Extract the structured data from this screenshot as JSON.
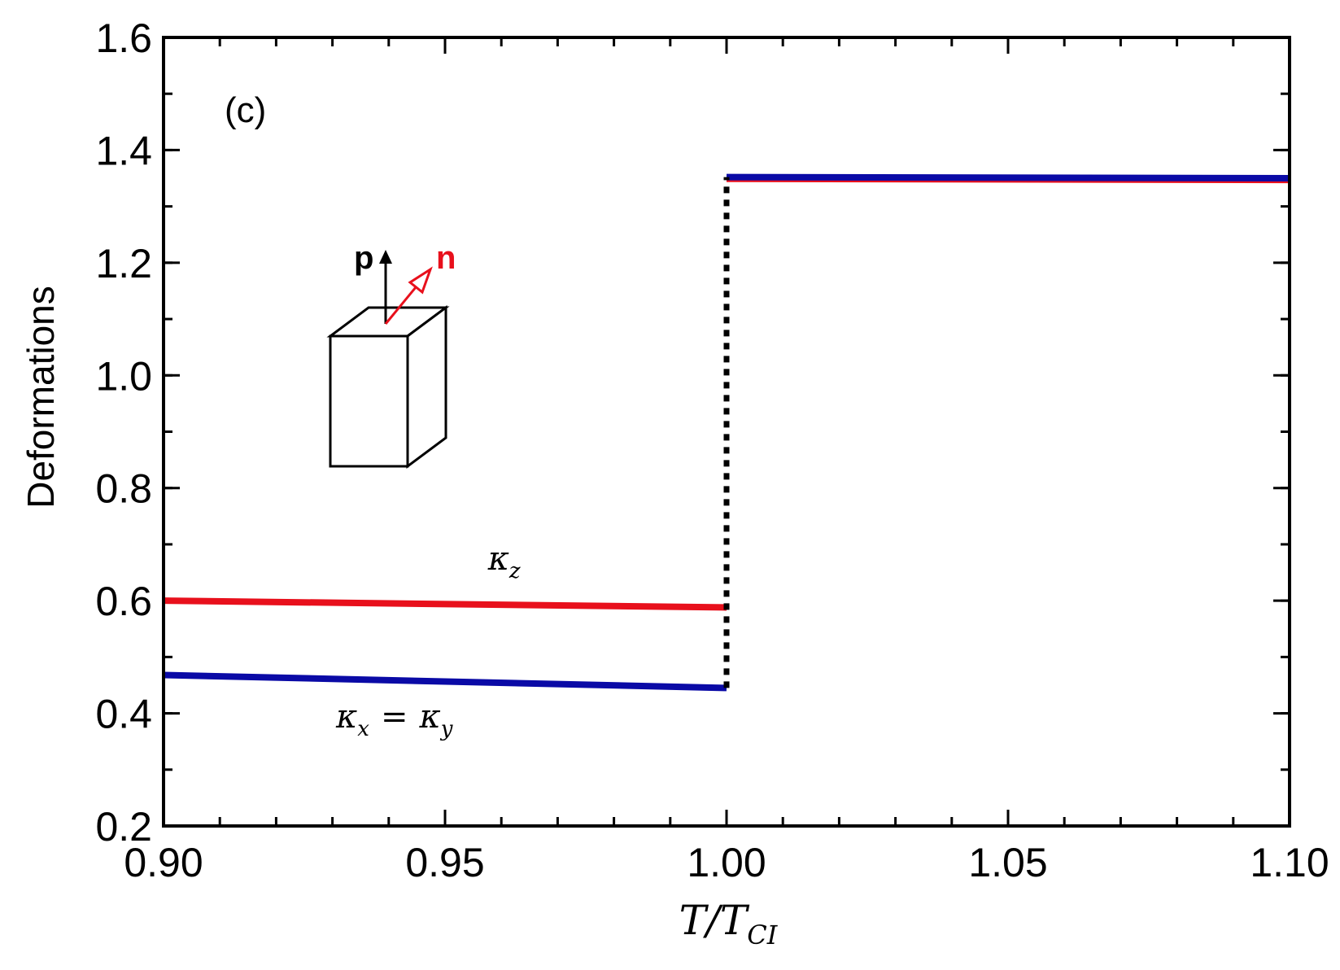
{
  "chart_data": {
    "type": "line",
    "panel_label": "(c)",
    "xlabel": {
      "main": "T/T",
      "subscript": "CI"
    },
    "ylabel": "Deformations",
    "xlim": [
      0.9,
      1.1
    ],
    "ylim": [
      0.2,
      1.6
    ],
    "x_ticks": [
      0.9,
      0.95,
      1.0,
      1.05,
      1.1
    ],
    "x_tick_labels": [
      "0.90",
      "0.95",
      "1.00",
      "1.05",
      "1.10"
    ],
    "x_minor_step": 0.01,
    "y_ticks": [
      0.2,
      0.4,
      0.6,
      0.8,
      1.0,
      1.2,
      1.4,
      1.6
    ],
    "y_tick_labels": [
      "0.2",
      "0.4",
      "0.6",
      "0.8",
      "1.0",
      "1.2",
      "1.4",
      "1.6"
    ],
    "y_minor_step": 0.1,
    "series": [
      {
        "name": "kappa_z",
        "color": "#e8101c",
        "segments": [
          {
            "x": [
              0.9,
              1.0
            ],
            "y": [
              0.6,
              0.588
            ]
          },
          {
            "x": [
              1.0,
              1.1
            ],
            "y": [
              1.349,
              1.347
            ]
          }
        ]
      },
      {
        "name": "kappa_x = kappa_y",
        "color": "#0a0aa6",
        "segments": [
          {
            "x": [
              0.9,
              1.0
            ],
            "y": [
              0.468,
              0.445
            ]
          },
          {
            "x": [
              1.0,
              1.1
            ],
            "y": [
              1.352,
              1.35
            ]
          }
        ]
      }
    ],
    "transition": {
      "x": 1.0,
      "y_from": 0.445,
      "y_to": 1.352,
      "style": "dotted",
      "color": "#000000"
    },
    "annotations": [
      {
        "id": "kz",
        "symbol": "κ",
        "subscript": "z",
        "x": 0.9605,
        "y": 0.655
      },
      {
        "id": "kxy",
        "symbol": "κ",
        "subscript": "x",
        "operator": "=",
        "symbol2": "κ",
        "subscript2": "y",
        "x": 0.941,
        "y": 0.375
      }
    ],
    "inset": {
      "vector_p": {
        "label": "p",
        "color": "#000000"
      },
      "vector_n": {
        "label": "n",
        "color": "#e8101c"
      }
    }
  }
}
